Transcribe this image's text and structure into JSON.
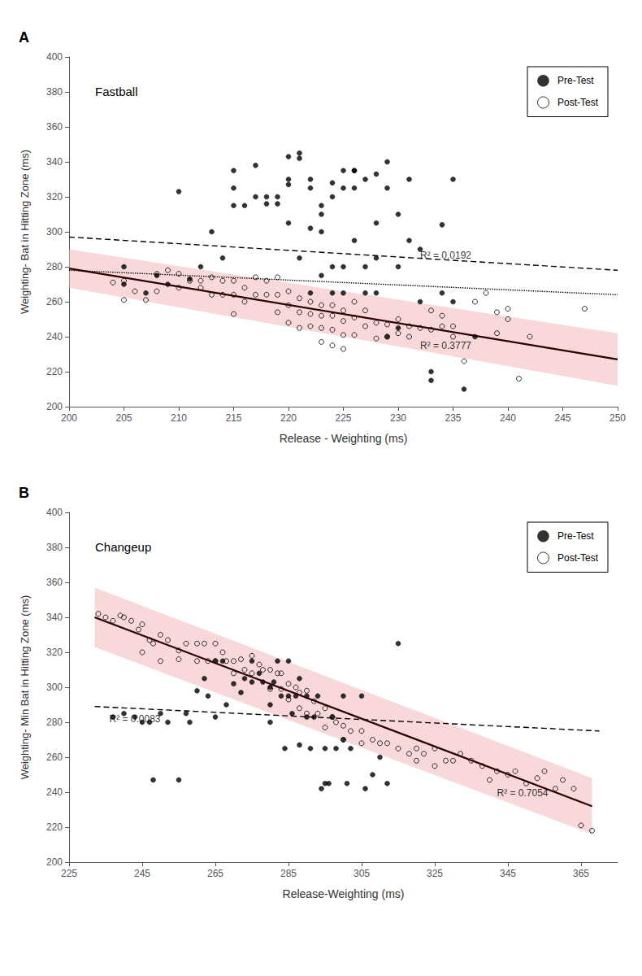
{
  "chart_data": [
    {
      "type": "scatter",
      "panel_label": "A",
      "title": "Fastball",
      "x_label": "Release - Weighting (ms)",
      "y_label": "Weighting- Bat in Hitting Zone (ms)",
      "xlim": [
        200,
        250
      ],
      "ylim": [
        200,
        400
      ],
      "xticks": [
        200,
        205,
        210,
        215,
        220,
        225,
        230,
        235,
        240,
        245,
        250
      ],
      "yticks": [
        200,
        220,
        240,
        260,
        280,
        300,
        320,
        340,
        360,
        380,
        400
      ],
      "grid": false,
      "legend": "upper right",
      "series": [
        {
          "name": "Pre-Test",
          "type": "scatter",
          "marker": "circle",
          "color": "black",
          "x": [
            205,
            205,
            207,
            208,
            209,
            210,
            211,
            212,
            213,
            214,
            215,
            215,
            215,
            216,
            217,
            217,
            218,
            218,
            219,
            219,
            220,
            220,
            220,
            220,
            221,
            221,
            221,
            222,
            222,
            222,
            222,
            223,
            223,
            223,
            223,
            224,
            224,
            224,
            224,
            225,
            225,
            225,
            225,
            226,
            226,
            226,
            226,
            227,
            227,
            227,
            228,
            228,
            228,
            228,
            229,
            229,
            229,
            230,
            230,
            230,
            231,
            231,
            232,
            232,
            233,
            233,
            234,
            234,
            235,
            235,
            236,
            237
          ],
          "values": [
            270,
            280,
            265,
            275,
            270,
            323,
            273,
            280,
            300,
            285,
            315,
            325,
            335,
            315,
            320,
            338,
            316,
            320,
            316,
            320,
            343,
            327,
            330,
            305,
            342,
            345,
            285,
            302,
            330,
            325,
            265,
            315,
            310,
            300,
            275,
            328,
            320,
            280,
            265,
            335,
            325,
            280,
            265,
            335,
            335,
            325,
            295,
            330,
            280,
            265,
            333,
            305,
            285,
            265,
            340,
            325,
            240,
            310,
            280,
            245,
            330,
            295,
            290,
            260,
            220,
            215,
            304,
            265,
            330,
            260,
            210,
            240
          ]
        },
        {
          "name": "Post-Test",
          "type": "scatter",
          "marker": "open circle",
          "color": "black",
          "x": [
            204,
            205,
            205,
            206,
            207,
            208,
            208,
            209,
            210,
            210,
            211,
            212,
            212,
            213,
            213,
            214,
            214,
            215,
            215,
            215,
            216,
            216,
            217,
            217,
            218,
            218,
            219,
            219,
            219,
            220,
            220,
            220,
            221,
            221,
            221,
            222,
            222,
            222,
            223,
            223,
            223,
            223,
            224,
            224,
            224,
            224,
            225,
            225,
            225,
            225,
            226,
            226,
            226,
            227,
            227,
            228,
            228,
            229,
            229,
            230,
            230,
            231,
            231,
            232,
            233,
            233,
            234,
            234,
            235,
            235,
            236,
            237,
            238,
            239,
            239,
            240,
            240,
            241,
            242,
            247
          ],
          "values": [
            271,
            272,
            261,
            266,
            261,
            276,
            266,
            278,
            276,
            268,
            272,
            272,
            268,
            274,
            264,
            272,
            264,
            272,
            264,
            253,
            268,
            260,
            274,
            264,
            272,
            264,
            274,
            264,
            254,
            266,
            258,
            248,
            262,
            254,
            245,
            260,
            253,
            246,
            258,
            252,
            245,
            237,
            258,
            252,
            244,
            235,
            255,
            249,
            241,
            233,
            260,
            251,
            241,
            255,
            246,
            248,
            239,
            247,
            240,
            250,
            242,
            246,
            240,
            245,
            255,
            244,
            252,
            246,
            246,
            240,
            226,
            260,
            265,
            254,
            242,
            250,
            256,
            216,
            240,
            256
          ]
        },
        {
          "type": "line",
          "line_style": "dashed",
          "color": "black",
          "x": [
            200,
            250
          ],
          "values": [
            297,
            278
          ]
        },
        {
          "type": "line",
          "line_style": "solid",
          "color": "#2b0000",
          "x": [
            200,
            250
          ],
          "values": [
            279,
            227
          ]
        },
        {
          "type": "band",
          "color": "#f2b8b8",
          "x": [
            200,
            250
          ],
          "lower": [
            268,
            212
          ],
          "upper": [
            290,
            242
          ]
        },
        {
          "type": "line",
          "line_style": "dotted",
          "color": "black",
          "x": [
            200,
            250
          ],
          "values": [
            278,
            264
          ]
        }
      ],
      "annotations": [
        {
          "text": "R² = 0.0192",
          "x": 232,
          "y": 283
        },
        {
          "text": "R² = 0.3777",
          "x": 232,
          "y": 231
        }
      ]
    },
    {
      "type": "scatter",
      "panel_label": "B",
      "title": "Changeup",
      "x_label": "Release-Weighting (ms)",
      "y_label": "Weighting- Min Bat in Hitting Zone (ms)",
      "xlim": [
        225,
        375
      ],
      "ylim": [
        200,
        400
      ],
      "xticks": [
        225,
        245,
        265,
        285,
        305,
        325,
        345,
        365
      ],
      "yticks": [
        200,
        220,
        240,
        260,
        280,
        300,
        320,
        340,
        360,
        380,
        400
      ],
      "grid": false,
      "legend": "upper right",
      "series": [
        {
          "name": "Pre-Test",
          "type": "scatter",
          "marker": "circle",
          "color": "black",
          "x": [
            237,
            240,
            243,
            245,
            247,
            248,
            250,
            252,
            255,
            257,
            258,
            260,
            262,
            263,
            265,
            265,
            267,
            268,
            270,
            272,
            273,
            275,
            275,
            277,
            278,
            280,
            280,
            280,
            281,
            282,
            283,
            284,
            285,
            285,
            286,
            287,
            288,
            288,
            290,
            290,
            291,
            292,
            293,
            294,
            295,
            295,
            296,
            297,
            298,
            300,
            300,
            301,
            302,
            305,
            306,
            308,
            310,
            312,
            315
          ],
          "values": [
            283,
            285,
            283,
            280,
            280,
            247,
            285,
            280,
            247,
            285,
            280,
            298,
            305,
            295,
            283,
            315,
            315,
            290,
            302,
            297,
            305,
            303,
            315,
            308,
            303,
            290,
            300,
            280,
            303,
            315,
            295,
            265,
            295,
            315,
            285,
            295,
            305,
            267,
            295,
            283,
            265,
            283,
            295,
            242,
            265,
            245,
            245,
            283,
            265,
            295,
            270,
            245,
            265,
            295,
            242,
            250,
            260,
            245,
            325
          ]
        },
        {
          "name": "Post-Test",
          "type": "scatter",
          "marker": "open circle",
          "color": "black",
          "x": [
            233,
            235,
            237,
            239,
            240,
            242,
            244,
            245,
            245,
            247,
            248,
            250,
            250,
            252,
            255,
            255,
            257,
            260,
            260,
            262,
            263,
            265,
            265,
            267,
            268,
            270,
            270,
            272,
            273,
            275,
            275,
            277,
            278,
            280,
            280,
            282,
            283,
            283,
            285,
            285,
            287,
            288,
            288,
            290,
            290,
            292,
            293,
            295,
            295,
            297,
            298,
            300,
            300,
            302,
            305,
            305,
            308,
            310,
            312,
            315,
            318,
            320,
            320,
            322,
            325,
            325,
            328,
            330,
            332,
            335,
            338,
            340,
            342,
            345,
            347,
            350,
            353,
            355,
            358,
            360,
            363,
            365,
            368
          ],
          "values": [
            342,
            340,
            338,
            341,
            340,
            338,
            333,
            336,
            320,
            327,
            325,
            315,
            330,
            327,
            321,
            316,
            325,
            325,
            315,
            325,
            315,
            325,
            315,
            320,
            315,
            315,
            308,
            316,
            310,
            318,
            308,
            313,
            310,
            310,
            299,
            308,
            308,
            299,
            302,
            293,
            300,
            297,
            288,
            298,
            285,
            292,
            285,
            288,
            277,
            283,
            280,
            278,
            270,
            275,
            268,
            275,
            270,
            268,
            268,
            265,
            262,
            265,
            258,
            262,
            265,
            255,
            258,
            258,
            262,
            258,
            255,
            247,
            252,
            250,
            252,
            245,
            248,
            252,
            242,
            247,
            242,
            221,
            218
          ]
        },
        {
          "type": "line",
          "line_style": "dashed",
          "color": "black",
          "x": [
            232,
            370
          ],
          "values": [
            289,
            275
          ]
        },
        {
          "type": "line",
          "line_style": "solid",
          "color": "#2b0000",
          "x": [
            232,
            368
          ],
          "values": [
            340,
            232
          ]
        },
        {
          "type": "band",
          "color": "#f2b8b8",
          "x": [
            232,
            368
          ],
          "lower": [
            323,
            216
          ],
          "upper": [
            357,
            248
          ]
        }
      ],
      "annotations": [
        {
          "text": "R² = 0.0083",
          "x": 236,
          "y": 278
        },
        {
          "text": "R² = 0.7054",
          "x": 342,
          "y": 236
        }
      ]
    }
  ]
}
